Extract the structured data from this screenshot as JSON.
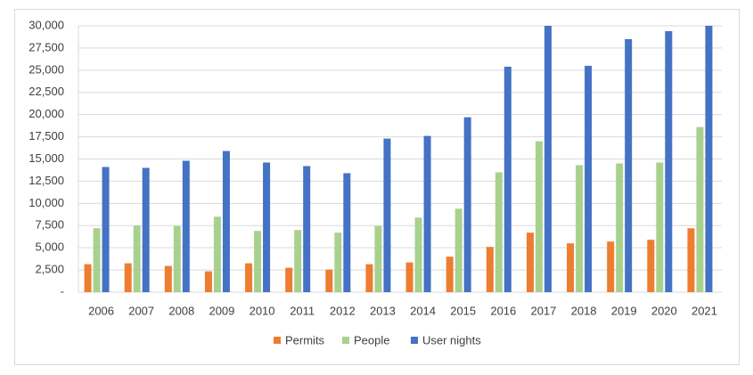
{
  "chart_data": {
    "type": "bar",
    "categories": [
      "2006",
      "2007",
      "2008",
      "2009",
      "2010",
      "2011",
      "2012",
      "2013",
      "2014",
      "2015",
      "2016",
      "2017",
      "2018",
      "2019",
      "2020",
      "2021"
    ],
    "series": [
      {
        "name": "Permits",
        "color": "#ed7d31",
        "values": [
          3150,
          3250,
          2950,
          2350,
          3250,
          2750,
          2550,
          3150,
          3350,
          4000,
          5100,
          6700,
          5500,
          5700,
          5900,
          7200
        ]
      },
      {
        "name": "People",
        "color": "#a9d18e",
        "values": [
          7200,
          7500,
          7450,
          8500,
          6900,
          7000,
          6700,
          7450,
          8400,
          9400,
          13500,
          17000,
          14300,
          14500,
          14600,
          18600
        ]
      },
      {
        "name": "User nights",
        "color": "#4472c4",
        "values": [
          14100,
          14000,
          14800,
          15900,
          14600,
          14200,
          13400,
          17300,
          17600,
          19700,
          25400,
          30000,
          25500,
          28500,
          29400,
          30000
        ]
      }
    ],
    "ylim": [
      0,
      30000
    ],
    "yticks": [
      {
        "value": 0,
        "label": "-"
      },
      {
        "value": 2500,
        "label": "2,500"
      },
      {
        "value": 5000,
        "label": "5,000"
      },
      {
        "value": 7500,
        "label": "7,500"
      },
      {
        "value": 10000,
        "label": "10,000"
      },
      {
        "value": 12500,
        "label": "12,500"
      },
      {
        "value": 15000,
        "label": "15,000"
      },
      {
        "value": 17500,
        "label": "17,500"
      },
      {
        "value": 20000,
        "label": "20,000"
      },
      {
        "value": 22500,
        "label": "22,500"
      },
      {
        "value": 25000,
        "label": "25,000"
      },
      {
        "value": 27500,
        "label": "27,500"
      },
      {
        "value": 30000,
        "label": "30,000"
      }
    ],
    "grid": true,
    "legend": "bottom"
  }
}
